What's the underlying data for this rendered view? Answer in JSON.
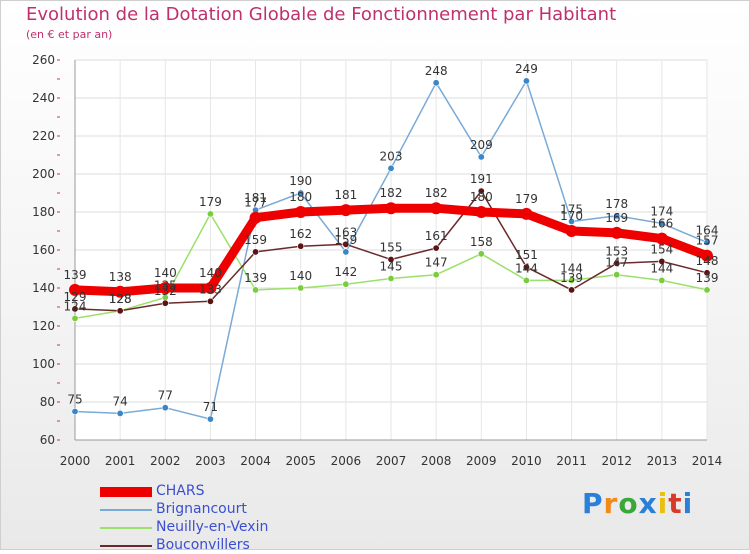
{
  "chart_data": {
    "type": "line",
    "title": "Evolution de la Dotation Globale de Fonctionnement par Habitant",
    "subtitle": "(en € et par an)",
    "x": [
      "2000",
      "2001",
      "2002",
      "2003",
      "2004",
      "2005",
      "2006",
      "2007",
      "2008",
      "2009",
      "2010",
      "2011",
      "2012",
      "2013",
      "2014"
    ],
    "ylim": [
      60,
      260
    ],
    "yticks": [
      60,
      80,
      100,
      120,
      140,
      160,
      180,
      200,
      220,
      240,
      260
    ],
    "grid": true,
    "series": [
      {
        "name": "Brignancourt",
        "color": "#7aaad6",
        "marker": "#3a86c8",
        "values": [
          75,
          74,
          77,
          71,
          181,
          190,
          159,
          203,
          248,
          209,
          249,
          175,
          178,
          174,
          164
        ]
      },
      {
        "name": "Neuilly-en-Vexin",
        "color": "#9be06a",
        "marker": "#7acc3c",
        "values": [
          124,
          128,
          135,
          179,
          139,
          140,
          142,
          145,
          147,
          158,
          144,
          144,
          147,
          144,
          139
        ]
      },
      {
        "name": "Bouconvillers",
        "color": "#6b2a2a",
        "marker": "#5a1414",
        "values": [
          129,
          128,
          132,
          133,
          159,
          162,
          163,
          155,
          161,
          191,
          151,
          139,
          153,
          154,
          148
        ]
      },
      {
        "name": "CHARS",
        "color": "#ee0000",
        "marker": "#ee0000",
        "values": [
          139,
          138,
          140,
          140,
          177,
          180,
          181,
          182,
          182,
          180,
          179,
          170,
          169,
          166,
          157
        ]
      }
    ],
    "legend": [
      {
        "name": "CHARS",
        "color": "#ee0000"
      },
      {
        "name": "Brignancourt",
        "color": "#7aaad6"
      },
      {
        "name": "Neuilly-en-Vexin",
        "color": "#9be06a"
      },
      {
        "name": "Bouconvillers",
        "color": "#6b2a2a"
      }
    ],
    "legend_position": "bottom-left"
  },
  "logo": {
    "text": "Proxiti",
    "colors": [
      "#2a7fd8",
      "#f08a18",
      "#3aa838",
      "#2a7fd8",
      "#e8c010",
      "#d83a2a",
      "#2a7fd8"
    ]
  }
}
